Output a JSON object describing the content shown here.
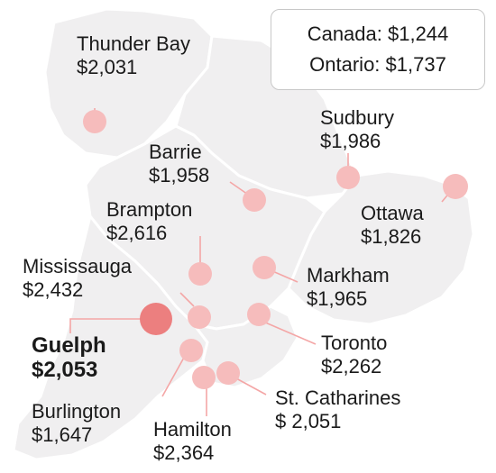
{
  "summary": {
    "canada": "Canada: $1,244",
    "ontario": "Ontario: $1,737"
  },
  "colors": {
    "dot": "#f6bcbc",
    "highlight_dot": "#ec7f7f",
    "leader": "#f4a6a6",
    "land": "#f0eff0"
  },
  "cities": [
    {
      "id": "thunder-bay",
      "name": "Thunder Bay",
      "value": "$2,031"
    },
    {
      "id": "sudbury",
      "name": "Sudbury",
      "value": "$1,986"
    },
    {
      "id": "barrie",
      "name": "Barrie",
      "value": "$1,958"
    },
    {
      "id": "ottawa",
      "name": "Ottawa",
      "value": "$1,826"
    },
    {
      "id": "brampton",
      "name": "Brampton",
      "value": "$2,616"
    },
    {
      "id": "mississauga",
      "name": "Mississauga",
      "value": "$2,432"
    },
    {
      "id": "markham",
      "name": "Markham",
      "value": "$1,965"
    },
    {
      "id": "guelph",
      "name": "Guelph",
      "value": "$2,053",
      "highlight": true
    },
    {
      "id": "toronto",
      "name": "Toronto",
      "value": "$2,262"
    },
    {
      "id": "burlington",
      "name": "Burlington",
      "value": "$1,647"
    },
    {
      "id": "st-catharines",
      "name": "St. Catharines",
      "value": "$ 2,051"
    },
    {
      "id": "hamilton",
      "name": "Hamilton",
      "value": "$2,364"
    }
  ]
}
